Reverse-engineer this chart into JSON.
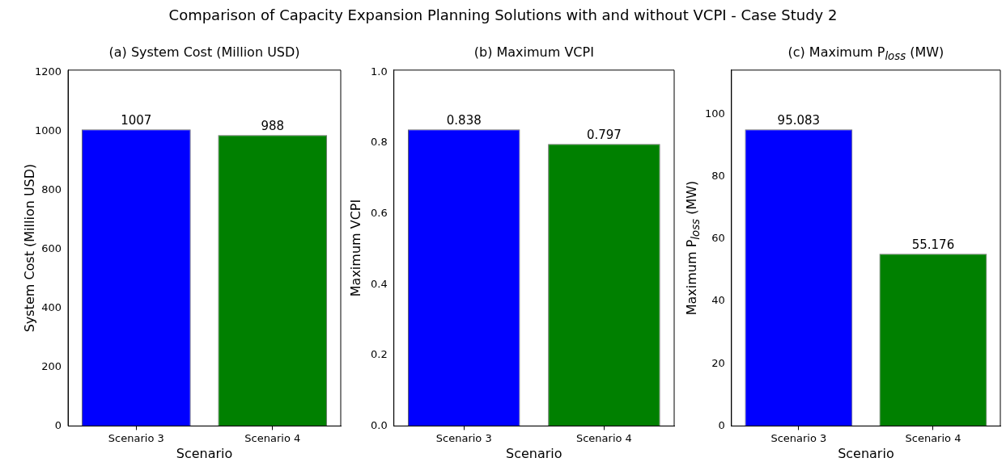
{
  "chart_data": [
    {
      "type": "bar",
      "title": "(a) System Cost (Million USD)",
      "xlabel": "Scenario",
      "ylabel": "System Cost (Million USD)",
      "annotations": [
        "Comparison of Capacity Expansion Planning Solutions with and without VCPI - Case Study 2"
      ],
      "categories": [
        "Scenario 3",
        "Scenario 4"
      ],
      "values": [
        1007,
        988
      ],
      "colors": [
        "#0000ff",
        "#008000"
      ],
      "ylim": [
        0,
        1208.4
      ],
      "yticks": [
        0,
        200,
        400,
        600,
        800,
        1000,
        1200
      ],
      "data_labels": true
    },
    {
      "type": "bar",
      "title": "(b) Maximum VCPI",
      "xlabel": "Scenario",
      "ylabel": "Maximum VCPI",
      "categories": [
        "Scenario 3",
        "Scenario 4"
      ],
      "values": [
        0.838,
        0.797
      ],
      "colors": [
        "#0000ff",
        "#008000"
      ],
      "ylim": [
        0,
        1.0056
      ],
      "yticks": [
        {
          "value": 0,
          "label": "0.0"
        },
        0.2,
        0.4,
        0.6,
        0.8,
        {
          "value": 1,
          "label": "1.0"
        }
      ],
      "data_labels": true
    },
    {
      "type": "bar",
      "title": "(c) Maximum P$_{loss}$ (MW)",
      "xlabel": "Scenario",
      "ylabel": "Maximum P$_{loss}$ (MW)",
      "categories": [
        "Scenario 3",
        "Scenario 4"
      ],
      "values": [
        95.083,
        55.176
      ],
      "colors": [
        "#0000ff",
        "#008000"
      ],
      "ylim": [
        0,
        114.1
      ],
      "yticks": [
        0,
        20,
        40,
        60,
        80,
        100
      ],
      "data_labels": true
    }
  ]
}
